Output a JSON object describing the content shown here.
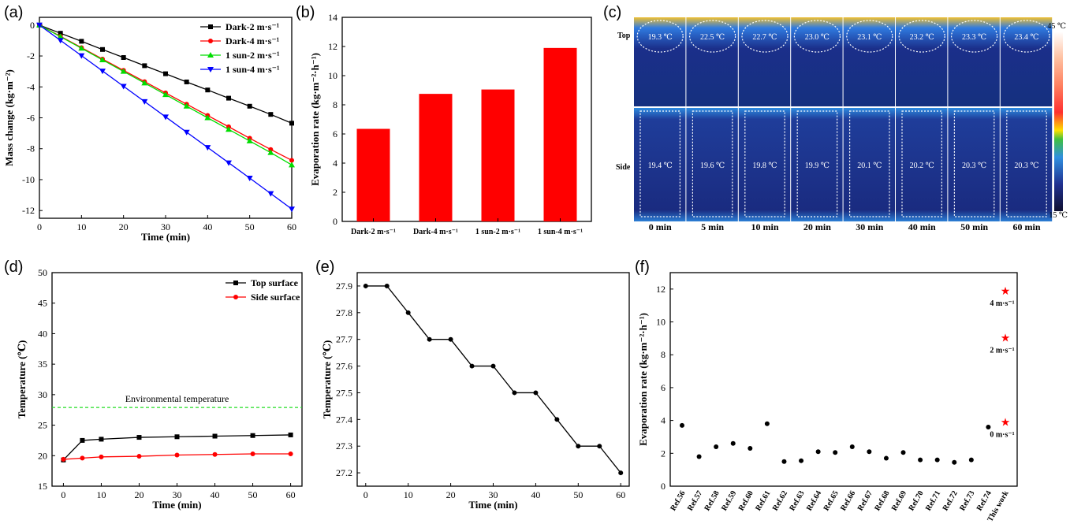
{
  "panel_labels": [
    "(a)",
    "(b)",
    "(c)",
    "(d)",
    "(e)",
    "(f)"
  ],
  "chart_data": [
    {
      "panel": "(a)",
      "type": "line",
      "xlabel": "Time (min)",
      "ylabel": "Mass change (kg·m⁻²)",
      "xlim": [
        0,
        60
      ],
      "ylim": [
        -12.5,
        0.5
      ],
      "xticks": [
        0,
        10,
        20,
        30,
        40,
        50,
        60
      ],
      "yticks": [
        0,
        -2,
        -4,
        -6,
        -8,
        -10,
        -12
      ],
      "legend_position": "top-right",
      "x": [
        0,
        5,
        10,
        15,
        20,
        25,
        30,
        35,
        40,
        45,
        50,
        55,
        60
      ],
      "series": [
        {
          "name": "Dark-2 m·s⁻¹",
          "color": "#000000",
          "marker": "square",
          "values": [
            0,
            -0.53,
            -1.05,
            -1.58,
            -2.1,
            -2.63,
            -3.15,
            -3.68,
            -4.2,
            -4.73,
            -5.25,
            -5.78,
            -6.35
          ]
        },
        {
          "name": "Dark-4 m·s⁻¹",
          "color": "#ff0000",
          "marker": "circle",
          "values": [
            0,
            -0.73,
            -1.46,
            -2.2,
            -2.93,
            -3.66,
            -4.39,
            -5.12,
            -5.85,
            -6.58,
            -7.32,
            -8.05,
            -8.75
          ]
        },
        {
          "name": "1 sun-2 m·s⁻¹",
          "color": "#00dd00",
          "marker": "triangle-up",
          "values": [
            0,
            -0.75,
            -1.5,
            -2.25,
            -3.0,
            -3.75,
            -4.5,
            -5.25,
            -6.0,
            -6.75,
            -7.5,
            -8.25,
            -9.05
          ]
        },
        {
          "name": "1 sun-4 m·s⁻¹",
          "color": "#0000ff",
          "marker": "triangle-down",
          "values": [
            0,
            -0.99,
            -1.98,
            -2.97,
            -3.96,
            -4.95,
            -5.94,
            -6.93,
            -7.92,
            -8.91,
            -9.9,
            -10.9,
            -11.9
          ]
        }
      ]
    },
    {
      "panel": "(b)",
      "type": "bar",
      "xlabel": "",
      "ylabel": "Evaporation rate (kg·m⁻²·h⁻¹)",
      "ylim": [
        0,
        14
      ],
      "yticks": [
        0,
        2,
        4,
        6,
        8,
        10,
        12,
        14
      ],
      "categories": [
        "Dark-2 m·s⁻¹",
        "Dark-4 m·s⁻¹",
        "1 sun-2 m·s⁻¹",
        "1 sun-4 m·s⁻¹"
      ],
      "values": [
        6.35,
        8.75,
        9.05,
        11.9
      ],
      "color": "#ff0000"
    },
    {
      "panel": "(c)",
      "type": "table",
      "row_labels": [
        "Top",
        "Side"
      ],
      "columns": [
        "0 min",
        "5  min",
        "10 min",
        "20 min",
        "30 min",
        "40 min",
        "50 min",
        "60 min"
      ],
      "top_temps": [
        "19.3 ℃",
        "22.5 ℃",
        "22.7 ℃",
        "23.0 ℃",
        "23.1 ℃",
        "23.2 ℃",
        "23.3 ℃",
        "23.4 ℃"
      ],
      "side_temps": [
        "19.4 ℃",
        "19.6 ℃",
        "19.8 ℃",
        "19.9 ℃",
        "20.1 ℃",
        "20.2 ℃",
        "20.3 ℃",
        "20.3 ℃"
      ],
      "colorbar_max": "45 ℃",
      "colorbar_min": "15 ℃"
    },
    {
      "panel": "(d)",
      "type": "line",
      "xlabel": "Time (min)",
      "ylabel": "Temperature (℃)",
      "xlim": [
        -3,
        63
      ],
      "ylim": [
        15,
        50
      ],
      "xticks": [
        0,
        10,
        20,
        30,
        40,
        50,
        60
      ],
      "yticks": [
        15,
        20,
        25,
        30,
        35,
        40,
        45,
        50
      ],
      "legend_position": "top-right",
      "x": [
        0,
        5,
        10,
        20,
        30,
        40,
        50,
        60
      ],
      "series": [
        {
          "name": "Top surface",
          "color": "#000000",
          "marker": "square",
          "values": [
            19.3,
            22.5,
            22.7,
            23.0,
            23.1,
            23.2,
            23.3,
            23.4
          ]
        },
        {
          "name": "Side surface",
          "color": "#ff0000",
          "marker": "circle",
          "values": [
            19.4,
            19.6,
            19.8,
            19.9,
            20.1,
            20.2,
            20.3,
            20.3
          ]
        }
      ],
      "reference_line": {
        "label": "Environmental temperature",
        "value": 27.9,
        "color": "#22dd22"
      }
    },
    {
      "panel": "(e)",
      "type": "line",
      "xlabel": "Time (min)",
      "ylabel": "Temperature (℃)",
      "xlim": [
        -2,
        62
      ],
      "ylim": [
        27.15,
        27.95
      ],
      "xticks": [
        0,
        10,
        20,
        30,
        40,
        50,
        60
      ],
      "yticks": [
        27.2,
        27.3,
        27.4,
        27.5,
        27.6,
        27.7,
        27.8,
        27.9
      ],
      "x": [
        0,
        5,
        10,
        15,
        20,
        25,
        30,
        35,
        40,
        45,
        50,
        55,
        60
      ],
      "series": [
        {
          "color": "#000000",
          "marker": "circle",
          "values": [
            27.9,
            27.9,
            27.8,
            27.7,
            27.7,
            27.6,
            27.6,
            27.5,
            27.5,
            27.4,
            27.3,
            27.3,
            27.2
          ]
        }
      ]
    },
    {
      "panel": "(f)",
      "type": "scatter",
      "xlabel": "",
      "ylabel": "Evaporation rate (kg·m⁻²·h⁻¹)",
      "ylim": [
        0,
        13
      ],
      "yticks": [
        0,
        2,
        4,
        6,
        8,
        10,
        12
      ],
      "categories": [
        "Ref.56",
        "Ref.57",
        "Ref.58",
        "Ref.59",
        "Ref.60",
        "Ref.61",
        "Ref.62",
        "Ref.63",
        "Ref.64",
        "Ref.65",
        "Ref.66",
        "Ref.67",
        "Ref.68",
        "Ref.69",
        "Ref.70",
        "Ref.71",
        "Ref.72",
        "Ref.73",
        "Ref.74",
        "This work"
      ],
      "values": [
        3.7,
        1.8,
        2.4,
        2.6,
        2.3,
        3.8,
        1.5,
        1.55,
        2.1,
        2.05,
        2.4,
        2.1,
        1.7,
        2.05,
        1.6,
        1.6,
        1.45,
        1.6,
        3.6,
        null
      ],
      "this_work": [
        {
          "value": 3.9,
          "label": "0 m·s⁻¹"
        },
        {
          "value": 9.05,
          "label": "2 m·s⁻¹"
        },
        {
          "value": 11.9,
          "label": "4 m·s⁻¹"
        }
      ]
    }
  ]
}
